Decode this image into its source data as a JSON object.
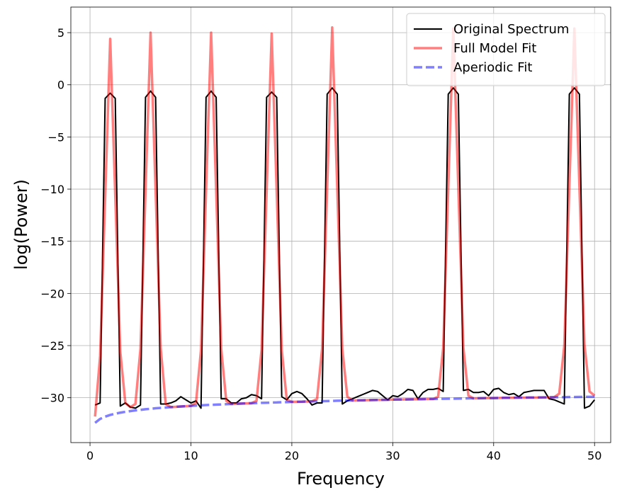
{
  "chart_data": {
    "type": "line",
    "x_label": "Frequency",
    "y_label": "log(Power)",
    "x": [
      0.5,
      1,
      1.5,
      2,
      2.5,
      3,
      3.5,
      4,
      4.5,
      5,
      5.5,
      6,
      6.5,
      7,
      7.5,
      8,
      8.5,
      9,
      9.5,
      10,
      10.5,
      11,
      11.5,
      12,
      12.5,
      13,
      13.5,
      14,
      14.5,
      15,
      15.5,
      16,
      16.5,
      17,
      17.5,
      18,
      18.5,
      19,
      19.5,
      20,
      20.5,
      21,
      21.5,
      22,
      22.5,
      23,
      23.5,
      24,
      24.5,
      25,
      25.5,
      26,
      26.5,
      27,
      27.5,
      28,
      28.5,
      29,
      29.5,
      30,
      30.5,
      31,
      31.5,
      32,
      32.5,
      33,
      33.5,
      34,
      34.5,
      35,
      35.5,
      36,
      36.5,
      37,
      37.5,
      38,
      38.5,
      39,
      39.5,
      40,
      40.5,
      41,
      41.5,
      42,
      42.5,
      43,
      43.5,
      44,
      44.5,
      45,
      45.5,
      46,
      46.5,
      47,
      47.5,
      48,
      48.5,
      49,
      49.5,
      50
    ],
    "series": [
      {
        "name": "Original Spectrum",
        "color": "#000000",
        "alpha": 1,
        "linewidth": 2,
        "linestyle": "solid",
        "values": [
          -30.7,
          -30.5,
          -1.3,
          -0.8,
          -1.3,
          -30.8,
          -30.5,
          -30.9,
          -31.0,
          -30.7,
          -1.2,
          -0.6,
          -1.2,
          -30.6,
          -30.6,
          -30.5,
          -30.3,
          -29.9,
          -30.2,
          -30.5,
          -30.3,
          -31.0,
          -1.2,
          -0.6,
          -1.2,
          -30.1,
          -30.1,
          -30.5,
          -30.5,
          -30.1,
          -30.0,
          -29.7,
          -29.8,
          -30.1,
          -1.2,
          -0.7,
          -1.2,
          -29.9,
          -30.2,
          -29.6,
          -29.4,
          -29.6,
          -30.1,
          -30.7,
          -30.5,
          -30.5,
          -0.9,
          -0.3,
          -0.9,
          -30.6,
          -30.3,
          -30.1,
          -29.9,
          -29.7,
          -29.5,
          -29.3,
          -29.4,
          -29.8,
          -30.2,
          -29.8,
          -29.9,
          -29.6,
          -29.2,
          -29.3,
          -30.1,
          -29.5,
          -29.2,
          -29.2,
          -29.1,
          -29.4,
          -0.9,
          -0.3,
          -0.9,
          -29.3,
          -29.2,
          -29.5,
          -29.5,
          -29.4,
          -29.8,
          -29.2,
          -29.1,
          -29.5,
          -29.7,
          -29.6,
          -29.9,
          -29.5,
          -29.4,
          -29.3,
          -29.3,
          -29.3,
          -30.1,
          -30.2,
          -30.4,
          -30.6,
          -0.9,
          -0.3,
          -0.9,
          -31.0,
          -30.8,
          -30.2
        ]
      },
      {
        "name": "Full Model Fit",
        "color": "#ff0000",
        "alpha": 0.5,
        "linewidth": 3.5,
        "linestyle": "solid",
        "values": [
          -31.8,
          -26.0,
          -10.8,
          4.4,
          -10.6,
          -25.6,
          -30.5,
          -30.9,
          -30.6,
          -25.3,
          -10.2,
          5.0,
          -10.2,
          -25.2,
          -30.6,
          -30.9,
          -30.87,
          -30.84,
          -30.81,
          -30.78,
          -30.5,
          -25.4,
          -10.2,
          5.0,
          -10.2,
          -25.3,
          -30.3,
          -30.6,
          -30.58,
          -30.56,
          -30.54,
          -30.52,
          -30.3,
          -25.4,
          -10.3,
          4.9,
          -10.3,
          -25.4,
          -30.2,
          -30.4,
          -30.39,
          -30.38,
          -30.36,
          -30.35,
          -30.1,
          -25.3,
          -9.9,
          5.5,
          -9.9,
          -25.3,
          -29.9,
          -30.26,
          -30.25,
          -30.24,
          -30.23,
          -30.22,
          -30.21,
          -30.2,
          -30.19,
          -30.18,
          -30.17,
          -30.17,
          -30.16,
          -30.15,
          -30.14,
          -30.13,
          -30.12,
          -30.12,
          -29.9,
          -25.2,
          -9.9,
          5.4,
          -9.9,
          -25.2,
          -29.8,
          -30.06,
          -30.05,
          -30.04,
          -30.03,
          -30.03,
          -30.02,
          -30.01,
          -30.01,
          -30.0,
          -29.99,
          -29.99,
          -29.98,
          -29.98,
          -29.97,
          -29.96,
          -29.96,
          -29.95,
          -29.6,
          -25.0,
          -9.8,
          5.4,
          -9.8,
          -24.9,
          -29.4,
          -29.8
        ]
      },
      {
        "name": "Aperiodic Fit",
        "color": "#0000ff",
        "alpha": 0.5,
        "linewidth": 3.5,
        "linestyle": "dashed",
        "values": [
          -32.41,
          -32.03,
          -31.81,
          -31.65,
          -31.53,
          -31.43,
          -31.35,
          -31.28,
          -31.21,
          -31.16,
          -31.1,
          -31.06,
          -31.01,
          -30.97,
          -30.94,
          -30.9,
          -30.87,
          -30.84,
          -30.81,
          -30.78,
          -30.75,
          -30.73,
          -30.7,
          -30.68,
          -30.66,
          -30.64,
          -30.62,
          -30.6,
          -30.58,
          -30.56,
          -30.54,
          -30.52,
          -30.51,
          -30.49,
          -30.48,
          -30.46,
          -30.45,
          -30.43,
          -30.42,
          -30.4,
          -30.39,
          -30.38,
          -30.36,
          -30.35,
          -30.34,
          -30.33,
          -30.32,
          -30.31,
          -30.29,
          -30.28,
          -30.27,
          -30.26,
          -30.25,
          -30.24,
          -30.23,
          -30.22,
          -30.21,
          -30.2,
          -30.19,
          -30.18,
          -30.17,
          -30.17,
          -30.16,
          -30.15,
          -30.14,
          -30.13,
          -30.12,
          -30.12,
          -30.11,
          -30.1,
          -30.09,
          -30.09,
          -30.08,
          -30.07,
          -30.06,
          -30.06,
          -30.05,
          -30.04,
          -30.03,
          -30.03,
          -30.02,
          -30.01,
          -30.01,
          -30.0,
          -29.99,
          -29.99,
          -29.98,
          -29.98,
          -29.97,
          -29.96,
          -29.96,
          -29.95,
          -29.95,
          -29.94,
          -29.93,
          -29.93,
          -29.92,
          -29.92,
          -29.91,
          -29.91
        ]
      }
    ],
    "xlim": [
      -1.9,
      51.6
    ],
    "ylim": [
      -34.3,
      7.45
    ],
    "xticks": [
      0,
      10,
      20,
      30,
      40,
      50
    ],
    "yticks": [
      5,
      0,
      {
        "value": -5,
        "label": "−5"
      },
      {
        "value": -10,
        "label": "−10"
      },
      {
        "value": -15,
        "label": "−15"
      },
      {
        "value": -20,
        "label": "−20"
      },
      {
        "value": -25,
        "label": "−25"
      },
      {
        "value": -30,
        "label": "−30"
      }
    ],
    "grid": true,
    "legend": "upper right"
  }
}
